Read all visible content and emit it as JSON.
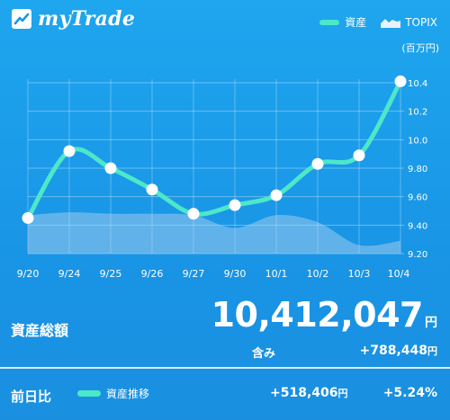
{
  "app": {
    "name": "myTrade"
  },
  "legend": {
    "asset": "資産",
    "topix": "TOPIX"
  },
  "unit": "(百万円)",
  "summary": {
    "label": "資産総額",
    "total": "10,412,047",
    "yen": "円",
    "incl_label": "含み",
    "incl_value": "+788,448",
    "incl_yen": "円"
  },
  "footer": {
    "label": "前日比",
    "legend_label": "資産推移",
    "change": "+518,406",
    "change_yen": "円",
    "percent": "+5.24%"
  },
  "colors": {
    "asset_line": "#4de8c8",
    "point": "#ffffff",
    "topix_area": "#b9d4ee"
  },
  "chart_data": {
    "type": "line",
    "categories": [
      "9/20",
      "9/24",
      "9/25",
      "9/26",
      "9/27",
      "9/30",
      "10/1",
      "10/2",
      "10/3",
      "10/4"
    ],
    "series": [
      {
        "name": "資産",
        "values": [
          9.45,
          9.92,
          9.8,
          9.65,
          9.48,
          9.54,
          9.61,
          9.83,
          9.89,
          10.41
        ]
      },
      {
        "name": "TOPIX",
        "values": [
          9.47,
          9.49,
          9.48,
          9.48,
          9.47,
          9.38,
          9.47,
          9.42,
          9.26,
          9.29
        ]
      }
    ],
    "ylim": [
      9.2,
      10.4
    ],
    "yticks": [
      "9.20",
      "9.40",
      "9.60",
      "9.80",
      "10.0",
      "10.2",
      "10.4"
    ],
    "grid": true
  }
}
